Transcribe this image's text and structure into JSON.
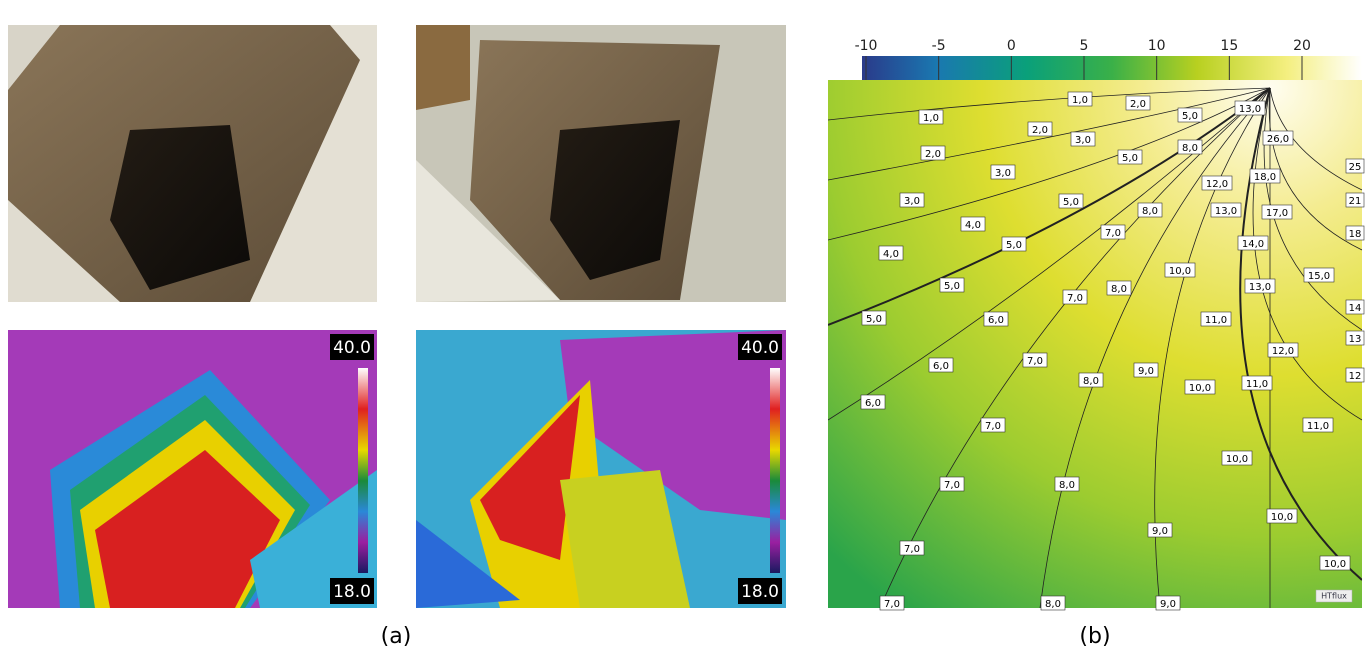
{
  "panel_a": {
    "label": "(a)",
    "thermal_scales": [
      {
        "max": "40.0",
        "min": "18.0"
      },
      {
        "max": "40.0",
        "min": "18.0"
      }
    ]
  },
  "panel_b": {
    "label": "(b)",
    "colorbar_ticks": [
      -10,
      -5,
      0,
      5,
      10,
      15,
      20
    ],
    "contour_labels": [
      "1,0",
      "2,0",
      "1,0",
      "2,0",
      "3,0",
      "5,0",
      "13,0",
      "2,0",
      "5,0",
      "8,0",
      "26,0",
      "3,0",
      "12,0",
      "18,0",
      "25",
      "3,0",
      "5,0",
      "8,0",
      "13,0",
      "17,0",
      "21",
      "4,0",
      "7,0",
      "18",
      "4,0",
      "5,0",
      "14,0",
      "10,0",
      "15,0",
      "5,0",
      "8,0",
      "13,0",
      "7,0",
      "14",
      "5,0",
      "6,0",
      "11,0",
      "13",
      "12,0",
      "6,0",
      "7,0",
      "8,0",
      "9,0",
      "10,0",
      "11,0",
      "12",
      "6,0",
      "11,0",
      "7,0",
      "10,0",
      "7,0",
      "8,0",
      "10,0",
      "9,0",
      "7,0",
      "10,0",
      "7,0",
      "8,0",
      "9,0"
    ],
    "logo": "HTflux"
  }
}
